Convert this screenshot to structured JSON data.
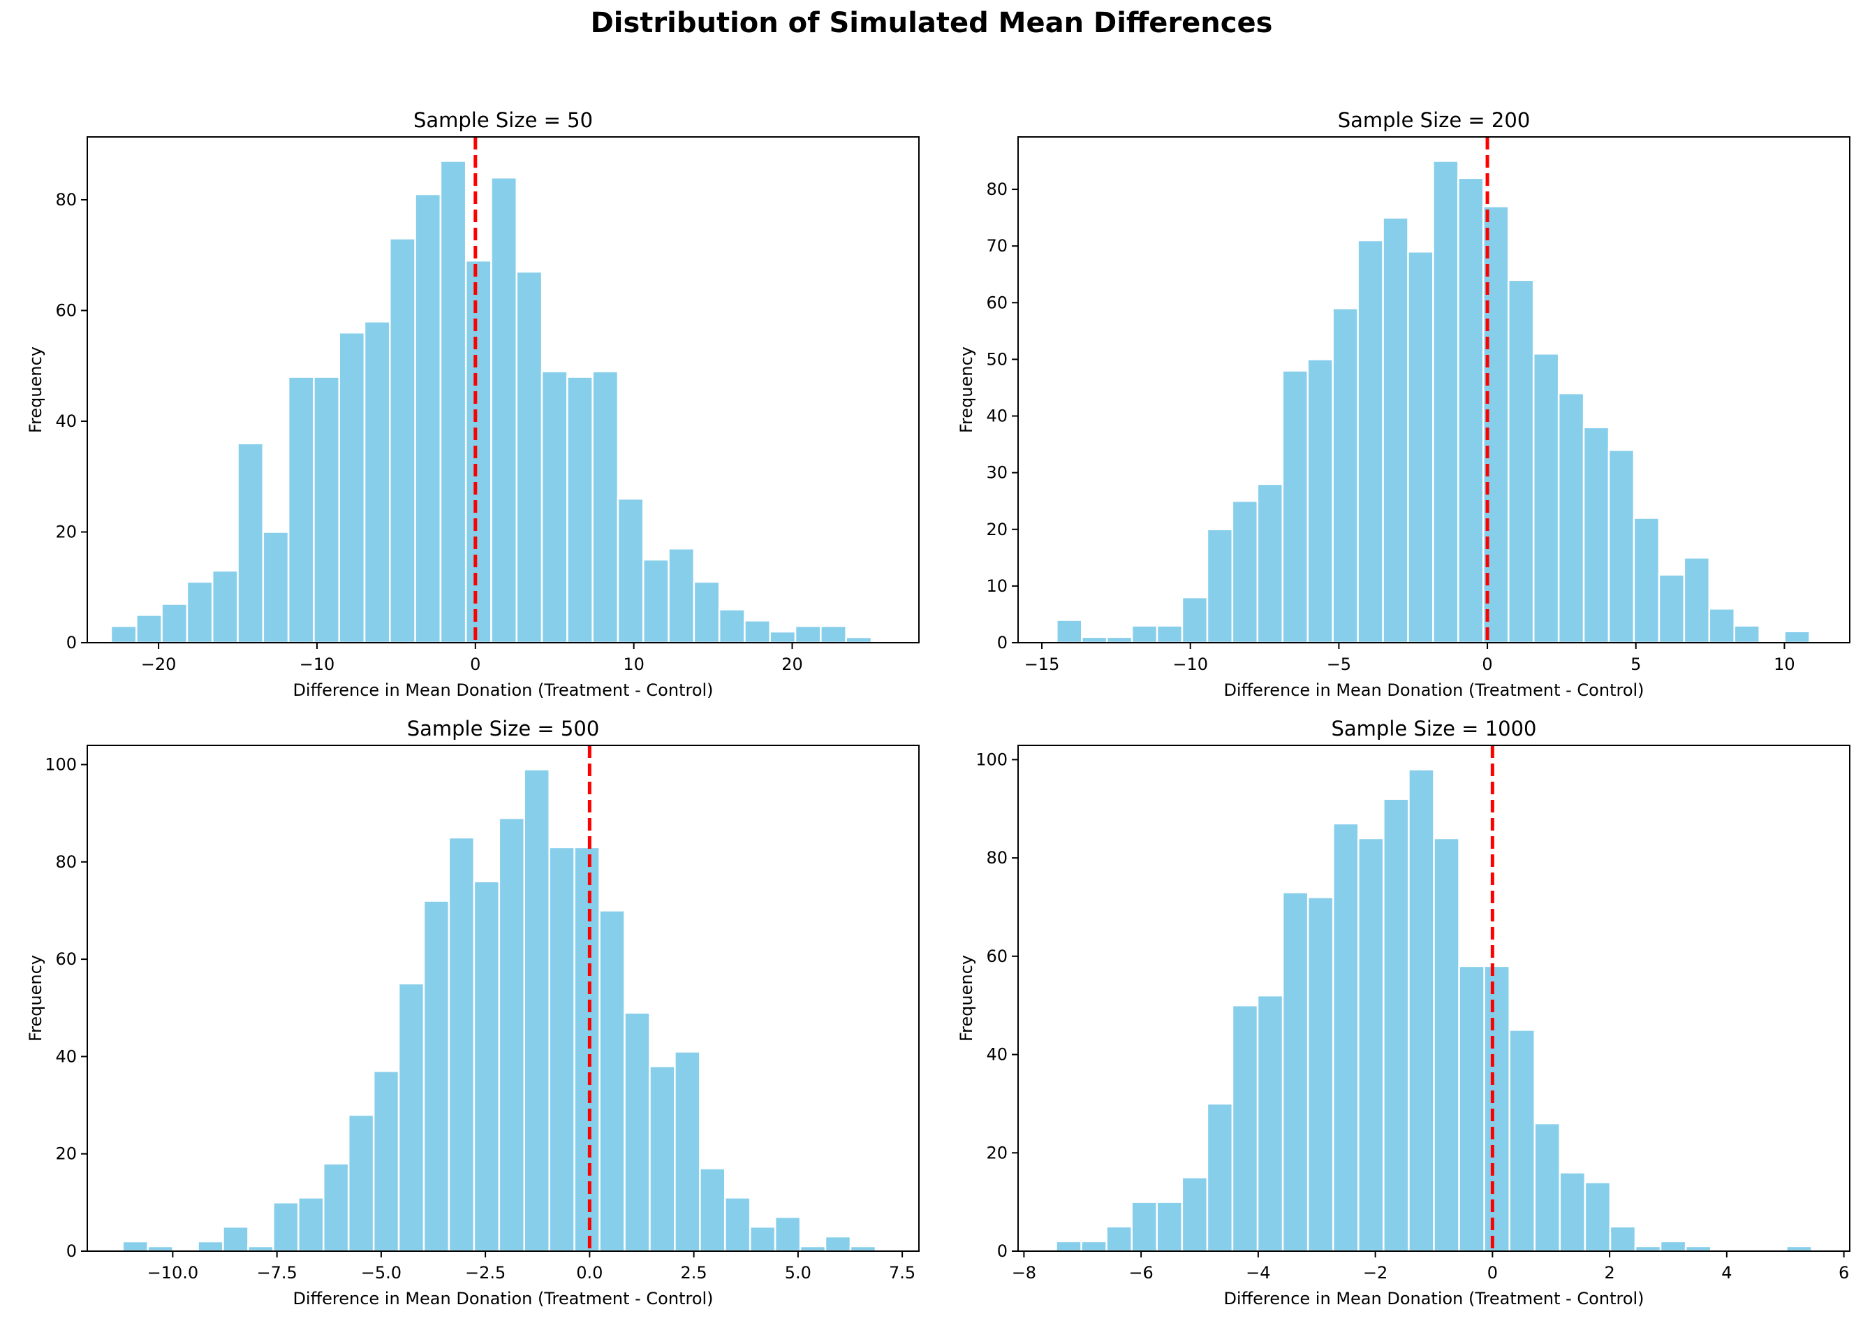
{
  "figure": {
    "title": "Distribution of Simulated Mean Differences"
  },
  "style": {
    "bar_color": "#87ceeb",
    "bar_edge": "#ffffff",
    "ref_line_color": "#ff0000"
  },
  "chart_data": [
    {
      "type": "bar",
      "title": "Sample Size = 50",
      "xlabel": "Difference in Mean Donation (Treatment - Control)",
      "ylabel": "Frequency",
      "xlim": [
        -24.5,
        28
      ],
      "ylim": [
        0,
        91.35
      ],
      "xticks": [
        -20,
        -10,
        0,
        10,
        20
      ],
      "xtick_labels": [
        "−20",
        "−10",
        "0",
        "10",
        "20"
      ],
      "yticks": [
        0,
        20,
        40,
        60,
        80
      ],
      "bin_start": -23,
      "bin_width": 1.6,
      "values": [
        3,
        5,
        7,
        11,
        13,
        36,
        20,
        48,
        48,
        56,
        58,
        73,
        81,
        87,
        69,
        84,
        67,
        49,
        48,
        49,
        26,
        15,
        17,
        11,
        6,
        4,
        2,
        3,
        3,
        1
      ],
      "reference_line": 0
    },
    {
      "type": "bar",
      "title": "Sample Size = 200",
      "xlabel": "Difference in Mean Donation (Treatment - Control)",
      "ylabel": "Frequency",
      "xlim": [
        -15.8,
        12.2
      ],
      "ylim": [
        0,
        89.25
      ],
      "xticks": [
        -15,
        -10,
        -5,
        0,
        5,
        10
      ],
      "xtick_labels": [
        "−15",
        "−10",
        "−5",
        "0",
        "5",
        "10"
      ],
      "yticks": [
        0,
        10,
        20,
        30,
        40,
        50,
        60,
        70,
        80
      ],
      "bin_start": -14.5,
      "bin_width": 0.845,
      "values": [
        4,
        1,
        1,
        3,
        3,
        8,
        20,
        25,
        28,
        48,
        50,
        59,
        71,
        75,
        69,
        85,
        82,
        77,
        64,
        51,
        44,
        38,
        34,
        22,
        12,
        15,
        6,
        3,
        0,
        2
      ],
      "reference_line": 0
    },
    {
      "type": "bar",
      "title": "Sample Size = 500",
      "xlabel": "Difference in Mean Donation (Treatment - Control)",
      "ylabel": "Frequency",
      "xlim": [
        -12.05,
        7.9
      ],
      "ylim": [
        0,
        103.95
      ],
      "xticks": [
        -10,
        -7.5,
        -5,
        -2.5,
        0,
        2.5,
        5,
        7.5
      ],
      "xtick_labels": [
        "−10.0",
        "−7.5",
        "−5.0",
        "−2.5",
        "0.0",
        "2.5",
        "5.0",
        "7.5"
      ],
      "yticks": [
        0,
        20,
        40,
        60,
        80,
        100
      ],
      "bin_start": -11.2,
      "bin_width": 0.602,
      "values": [
        2,
        1,
        0,
        2,
        5,
        1,
        10,
        11,
        18,
        28,
        37,
        55,
        72,
        85,
        76,
        89,
        99,
        83,
        83,
        70,
        49,
        38,
        41,
        17,
        11,
        5,
        7,
        1,
        3,
        1
      ],
      "reference_line": 0
    },
    {
      "type": "bar",
      "title": "Sample Size = 1000",
      "xlabel": "Difference in Mean Donation (Treatment - Control)",
      "ylabel": "Frequency",
      "xlim": [
        -8.1,
        6.1
      ],
      "ylim": [
        0,
        102.9
      ],
      "xticks": [
        -8,
        -6,
        -4,
        -2,
        0,
        2,
        4,
        6
      ],
      "xtick_labels": [
        "−8",
        "−6",
        "−4",
        "−2",
        "0",
        "2",
        "4",
        "6"
      ],
      "yticks": [
        0,
        20,
        40,
        60,
        80,
        100
      ],
      "bin_start": -7.45,
      "bin_width": 0.43,
      "values": [
        2,
        2,
        5,
        10,
        10,
        15,
        30,
        50,
        52,
        73,
        72,
        87,
        84,
        92,
        98,
        84,
        58,
        58,
        45,
        26,
        16,
        14,
        5,
        1,
        2,
        1,
        0,
        0,
        0,
        1
      ],
      "reference_line": 0
    }
  ]
}
